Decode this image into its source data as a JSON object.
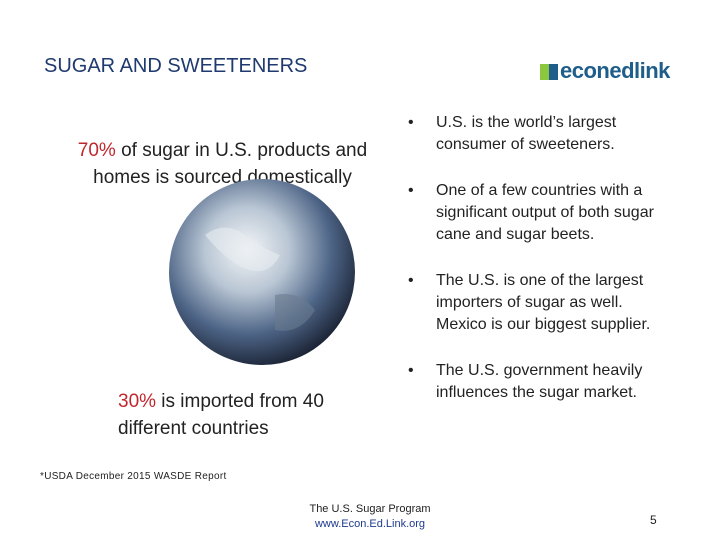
{
  "header": {
    "title": "SUGAR AND SWEETENERS",
    "logo": "econedlink"
  },
  "domestic": {
    "highlight": "70%",
    "text": " of sugar in U.S. products and homes is sourced domestically"
  },
  "imported": {
    "highlight": "30%",
    "text": " is imported from 40 different countries"
  },
  "bullets": [
    "U.S. is the world’s largest consumer of sweeteners.",
    "One of a few countries with a significant output of both sugar cane and sugar beets.",
    "The U.S. is one of the largest importers of sugar as well.  Mexico is our biggest supplier.",
    "The U.S. government heavily influences the sugar market."
  ],
  "footnote": "*USDA December 2015 WASDE Report",
  "footer": {
    "program": "The U.S. Sugar Program",
    "url": "www.Econ.Ed.Link.org"
  },
  "page_number": "5"
}
